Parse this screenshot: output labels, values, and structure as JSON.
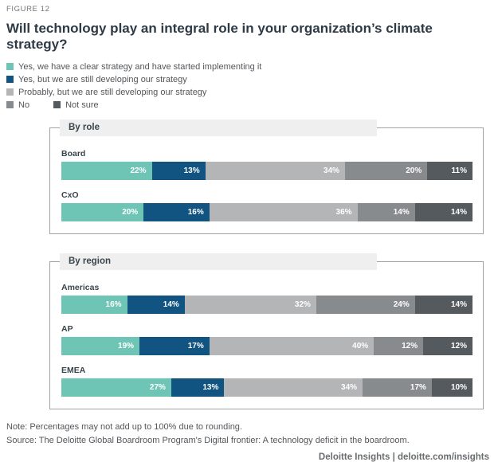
{
  "figure_label": "FIGURE 12",
  "title": "Will technology play an integral role in your organization’s climate strategy?",
  "legend": [
    {
      "label": "Yes, we have a clear strategy and have started implementing it",
      "color": "#6FC5B5"
    },
    {
      "label": "Yes, but we are still developing our strategy",
      "color": "#115482"
    },
    {
      "label": "Probably, but we are still developing our strategy",
      "color": "#B3B5B6"
    },
    {
      "label": "No",
      "color": "#878B8E"
    },
    {
      "label": "Not sure",
      "color": "#555A5E"
    }
  ],
  "chart_data": {
    "type": "bar",
    "orientation": "horizontal",
    "stacked": true,
    "unit": "%",
    "value_labels": "inside-right, white, bold",
    "series_names": [
      "Yes, we have a clear strategy and have started implementing it",
      "Yes, but we are still developing our strategy",
      "Probably, but we are still developing our strategy",
      "No",
      "Not sure"
    ],
    "groups": [
      {
        "heading": "By role",
        "rows": [
          {
            "label": "Board",
            "values": [
              22,
              13,
              34,
              20,
              11
            ]
          },
          {
            "label": "CxO",
            "values": [
              20,
              16,
              36,
              14,
              14
            ]
          }
        ]
      },
      {
        "heading": "By region",
        "rows": [
          {
            "label": "Americas",
            "values": [
              16,
              14,
              32,
              24,
              14
            ]
          },
          {
            "label": "AP",
            "values": [
              19,
              17,
              40,
              12,
              12
            ]
          },
          {
            "label": "EMEA",
            "values": [
              27,
              13,
              34,
              17,
              10
            ]
          }
        ]
      }
    ],
    "xlim": [
      0,
      100
    ],
    "grid": false,
    "legend_position": "top-left"
  },
  "footer": {
    "note": "Note: Percentages may not add up to 100% due to rounding.",
    "source": "Source: The Deloitte Global Boardroom Program's Digital frontier: A technology deficit in the boardroom.",
    "branding": "Deloitte Insights | deloitte.com/insights"
  }
}
